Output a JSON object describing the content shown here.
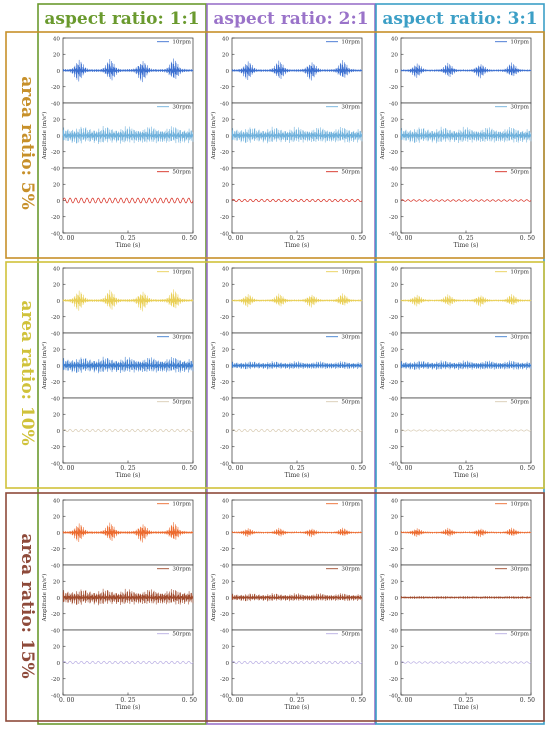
{
  "columns": [
    {
      "title": "aspect ratio: 1:1",
      "color": "#6a9a2e"
    },
    {
      "title": "aspect ratio: 2:1",
      "color": "#9a73c9"
    },
    {
      "title": "aspect ratio: 3:1",
      "color": "#3c9fc6"
    }
  ],
  "rows": [
    {
      "title": "area ratio: 5%",
      "color": "#c7902a"
    },
    {
      "title": "area ratio: 10%",
      "color": "#d0c23a"
    },
    {
      "title": "area ratio: 15%",
      "color": "#8e4a3a"
    }
  ],
  "chart_data": {
    "type": "line",
    "layout": "3x3 grid of panels; each panel is three stacked time-series subplots sharing the x axis",
    "xlabel": "Time (s)",
    "ylabel": "Amplitude (m/s²)",
    "xlim": [
      0,
      0.5
    ],
    "xticks": [
      "0. 00",
      "0. 25",
      "0. 50"
    ],
    "ylim": [
      -40,
      40
    ],
    "yticks": [
      40,
      20,
      0,
      -20,
      -40
    ],
    "subplot_series": [
      "10rpm",
      "30rpm",
      "50rpm"
    ],
    "series_colors": [
      [
        "#3b6fd0",
        "#6fb1dc",
        "#d62b1f"
      ],
      [
        "#e9cf55",
        "#3f7fd0",
        "#d8cbb3"
      ],
      [
        "#ec6a2e",
        "#a04a2c",
        "#b9aee3"
      ]
    ],
    "envelope_amplitude": {
      "description": "approximate peak amplitude of each trace (m/s²); order: [10rpm, 30rpm, 50rpm]",
      "rows": [
        [
          [
            15,
            13,
            3
          ],
          [
            13,
            12,
            1.5
          ],
          [
            10,
            12,
            1
          ]
        ],
        [
          [
            14,
            12,
            1.5
          ],
          [
            9,
            6,
            1.5
          ],
          [
            8,
            7,
            0.8
          ]
        ],
        [
          [
            13,
            12,
            1.5
          ],
          [
            6,
            6,
            1.5
          ],
          [
            6,
            2,
            1
          ]
        ]
      ]
    },
    "burst_count_10rpm": 4
  }
}
